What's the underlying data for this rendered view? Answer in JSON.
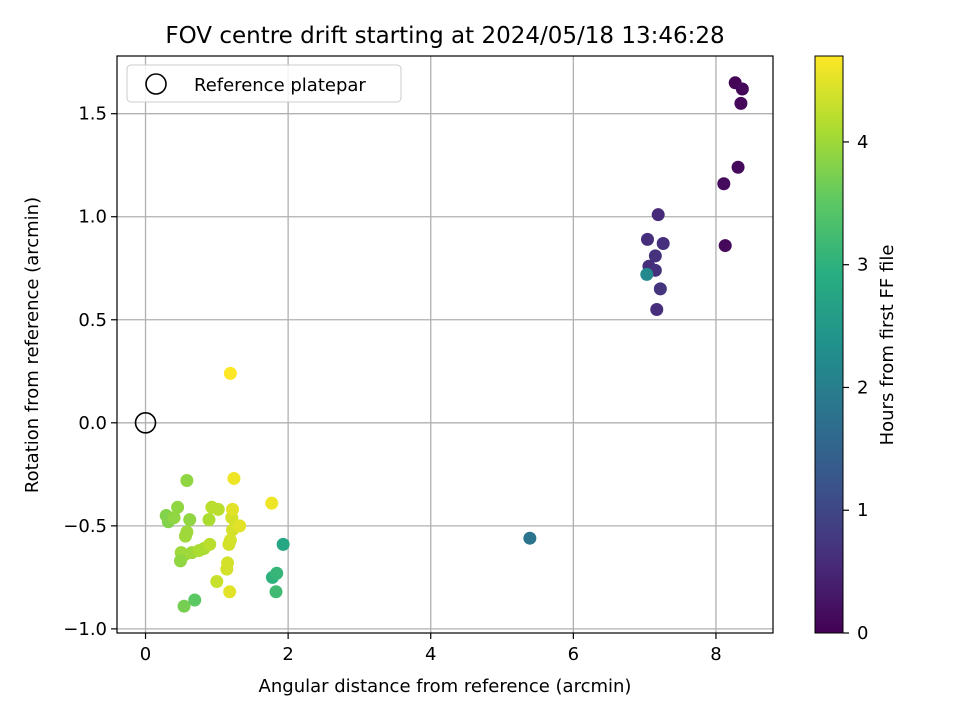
{
  "chart_data": {
    "type": "scatter",
    "title": "FOV centre drift starting at 2024/05/18 13:46:28",
    "xlabel": "Angular distance from reference (arcmin)",
    "ylabel": "Rotation from reference (arcmin)",
    "xlim": [
      -0.4,
      8.8
    ],
    "ylim": [
      -1.02,
      1.78
    ],
    "xticks": [
      0,
      2,
      4,
      6,
      8
    ],
    "yticks": [
      -1.0,
      -0.5,
      0.0,
      0.5,
      1.0,
      1.5
    ],
    "ytick_labels": [
      "−1.0",
      "−0.5",
      "0.0",
      "0.5",
      "1.0",
      "1.5"
    ],
    "grid": true,
    "legend": {
      "placement": "top-left",
      "entries": [
        "Reference platepar"
      ]
    },
    "reference_point": {
      "x": 0.0,
      "y": 0.0,
      "label": "Reference platepar"
    },
    "colorbar": {
      "label": "Hours from first FF file",
      "colormap": "viridis",
      "range": [
        0,
        4.7
      ],
      "ticks": [
        0,
        1,
        2,
        3,
        4
      ]
    },
    "points": [
      {
        "x": 8.27,
        "y": 1.65,
        "c": 0.05
      },
      {
        "x": 8.37,
        "y": 1.62,
        "c": 0.08
      },
      {
        "x": 8.35,
        "y": 1.55,
        "c": 0.1
      },
      {
        "x": 8.31,
        "y": 1.24,
        "c": 0.12
      },
      {
        "x": 8.11,
        "y": 1.16,
        "c": 0.15
      },
      {
        "x": 8.13,
        "y": 0.86,
        "c": 0.1
      },
      {
        "x": 7.19,
        "y": 1.01,
        "c": 0.55
      },
      {
        "x": 7.04,
        "y": 0.89,
        "c": 0.6
      },
      {
        "x": 7.26,
        "y": 0.87,
        "c": 0.62
      },
      {
        "x": 7.15,
        "y": 0.81,
        "c": 0.65
      },
      {
        "x": 7.06,
        "y": 0.76,
        "c": 0.6
      },
      {
        "x": 7.15,
        "y": 0.74,
        "c": 0.65
      },
      {
        "x": 7.22,
        "y": 0.65,
        "c": 0.7
      },
      {
        "x": 7.17,
        "y": 0.55,
        "c": 0.6
      },
      {
        "x": 7.03,
        "y": 0.72,
        "c": 2.2
      },
      {
        "x": 5.39,
        "y": -0.56,
        "c": 1.8
      },
      {
        "x": 1.93,
        "y": -0.59,
        "c": 2.8
      },
      {
        "x": 1.78,
        "y": -0.75,
        "c": 3.0
      },
      {
        "x": 1.84,
        "y": -0.73,
        "c": 3.1
      },
      {
        "x": 1.83,
        "y": -0.82,
        "c": 3.2
      },
      {
        "x": 0.69,
        "y": -0.86,
        "c": 3.5
      },
      {
        "x": 0.54,
        "y": -0.89,
        "c": 3.7
      },
      {
        "x": 0.58,
        "y": -0.28,
        "c": 3.9
      },
      {
        "x": 0.45,
        "y": -0.41,
        "c": 3.9
      },
      {
        "x": 0.29,
        "y": -0.45,
        "c": 3.8
      },
      {
        "x": 0.32,
        "y": -0.48,
        "c": 3.8
      },
      {
        "x": 0.4,
        "y": -0.46,
        "c": 3.9
      },
      {
        "x": 0.62,
        "y": -0.47,
        "c": 3.9
      },
      {
        "x": 0.58,
        "y": -0.53,
        "c": 4.0
      },
      {
        "x": 0.56,
        "y": -0.55,
        "c": 4.0
      },
      {
        "x": 0.5,
        "y": -0.63,
        "c": 4.0
      },
      {
        "x": 0.55,
        "y": -0.64,
        "c": 4.0
      },
      {
        "x": 0.49,
        "y": -0.67,
        "c": 3.9
      },
      {
        "x": 0.65,
        "y": -0.63,
        "c": 4.0
      },
      {
        "x": 0.75,
        "y": -0.62,
        "c": 4.1
      },
      {
        "x": 0.82,
        "y": -0.61,
        "c": 4.1
      },
      {
        "x": 0.9,
        "y": -0.59,
        "c": 4.2
      },
      {
        "x": 0.89,
        "y": -0.47,
        "c": 4.1
      },
      {
        "x": 0.93,
        "y": -0.41,
        "c": 4.2
      },
      {
        "x": 1.02,
        "y": -0.42,
        "c": 4.2
      },
      {
        "x": 1.0,
        "y": -0.77,
        "c": 4.3
      },
      {
        "x": 1.15,
        "y": -0.68,
        "c": 4.4
      },
      {
        "x": 1.14,
        "y": -0.71,
        "c": 4.4
      },
      {
        "x": 1.17,
        "y": -0.59,
        "c": 4.4
      },
      {
        "x": 1.19,
        "y": -0.57,
        "c": 4.4
      },
      {
        "x": 1.22,
        "y": -0.52,
        "c": 4.4
      },
      {
        "x": 1.21,
        "y": -0.46,
        "c": 4.4
      },
      {
        "x": 1.22,
        "y": -0.42,
        "c": 4.5
      },
      {
        "x": 1.32,
        "y": -0.5,
        "c": 4.5
      },
      {
        "x": 1.18,
        "y": -0.82,
        "c": 4.5
      },
      {
        "x": 1.77,
        "y": -0.39,
        "c": 4.6
      },
      {
        "x": 1.24,
        "y": -0.27,
        "c": 4.6
      },
      {
        "x": 1.19,
        "y": 0.24,
        "c": 4.7
      }
    ]
  }
}
